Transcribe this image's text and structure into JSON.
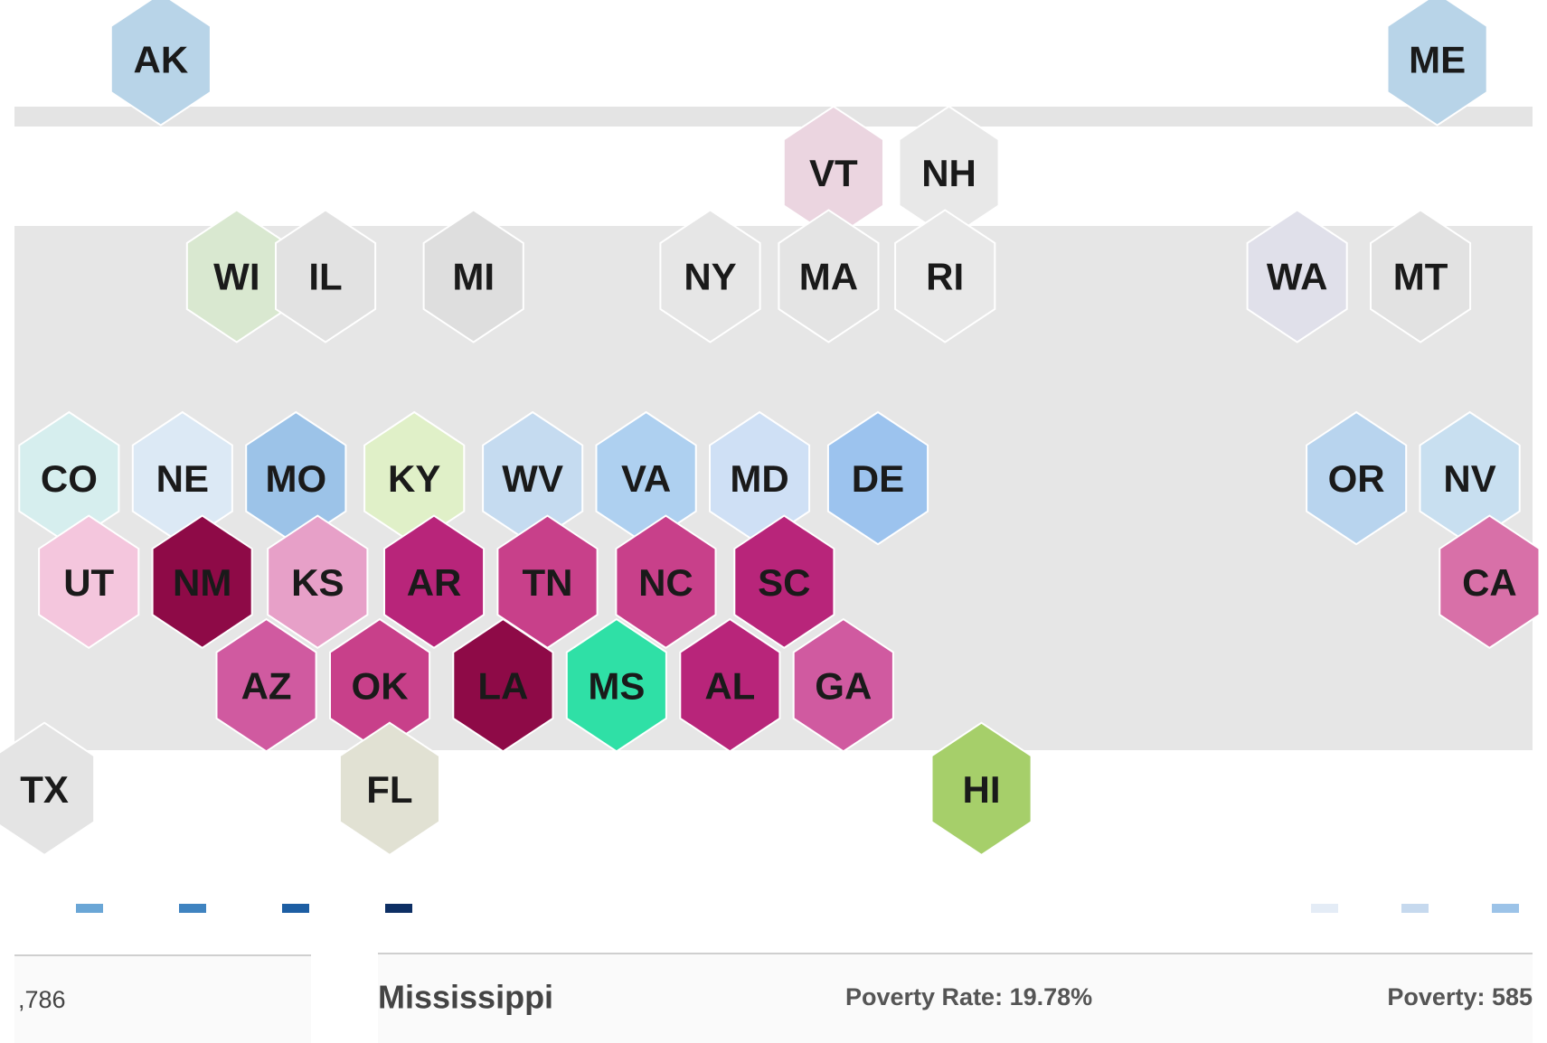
{
  "map": {
    "hexes": [
      {
        "label": "AK",
        "color": "#b8d4e8"
      },
      {
        "label": "ME",
        "color": "#b8d4e8"
      },
      {
        "label": "VT",
        "color": "#ebd5e0"
      },
      {
        "label": "NH",
        "color": "#e8e8e8"
      },
      {
        "label": "WI",
        "color": "#d9e8d0"
      },
      {
        "label": "IL",
        "color": "#e2e2e2"
      },
      {
        "label": "MI",
        "color": "#dedede"
      },
      {
        "label": "NY",
        "color": "#e6e6e6"
      },
      {
        "label": "MA",
        "color": "#e4e4e4"
      },
      {
        "label": "RI",
        "color": "#e8e8e8"
      },
      {
        "label": "WA",
        "color": "#e0e0ea"
      },
      {
        "label": "MT",
        "color": "#e2e2e2"
      },
      {
        "label": "CO",
        "color": "#d6eeee"
      },
      {
        "label": "NE",
        "color": "#dce9f5"
      },
      {
        "label": "MO",
        "color": "#9cc3e8"
      },
      {
        "label": "KY",
        "color": "#e0f0c8"
      },
      {
        "label": "WV",
        "color": "#c5dbf0"
      },
      {
        "label": "VA",
        "color": "#aed0f0"
      },
      {
        "label": "MD",
        "color": "#cfe0f5"
      },
      {
        "label": "DE",
        "color": "#9cc3ee"
      },
      {
        "label": "OR",
        "color": "#b8d4ee"
      },
      {
        "label": "NV",
        "color": "#c8dff0"
      },
      {
        "label": "UT",
        "color": "#f4c6dd"
      },
      {
        "label": "NM",
        "color": "#8e0a47"
      },
      {
        "label": "KS",
        "color": "#e7a0c8"
      },
      {
        "label": "AR",
        "color": "#b8257a"
      },
      {
        "label": "TN",
        "color": "#c8408a"
      },
      {
        "label": "NC",
        "color": "#c8408a"
      },
      {
        "label": "SC",
        "color": "#b8257a"
      },
      {
        "label": "CA",
        "color": "#d870a8"
      },
      {
        "label": "AZ",
        "color": "#d05aa0"
      },
      {
        "label": "OK",
        "color": "#c8408a"
      },
      {
        "label": "LA",
        "color": "#8e0a47"
      },
      {
        "label": "MS",
        "color": "#2fe0a6"
      },
      {
        "label": "AL",
        "color": "#b8257a"
      },
      {
        "label": "GA",
        "color": "#d05aa0"
      },
      {
        "label": "TX",
        "color": "#e4e4e4"
      },
      {
        "label": "FL",
        "color": "#e1e1d3"
      },
      {
        "label": "HI",
        "color": "#a6cf6a"
      }
    ]
  },
  "panels": {
    "left_value": ",786",
    "state": "Mississippi",
    "poverty_rate": "Poverty Rate: 19.78%",
    "poverty": "Poverty: 585"
  }
}
